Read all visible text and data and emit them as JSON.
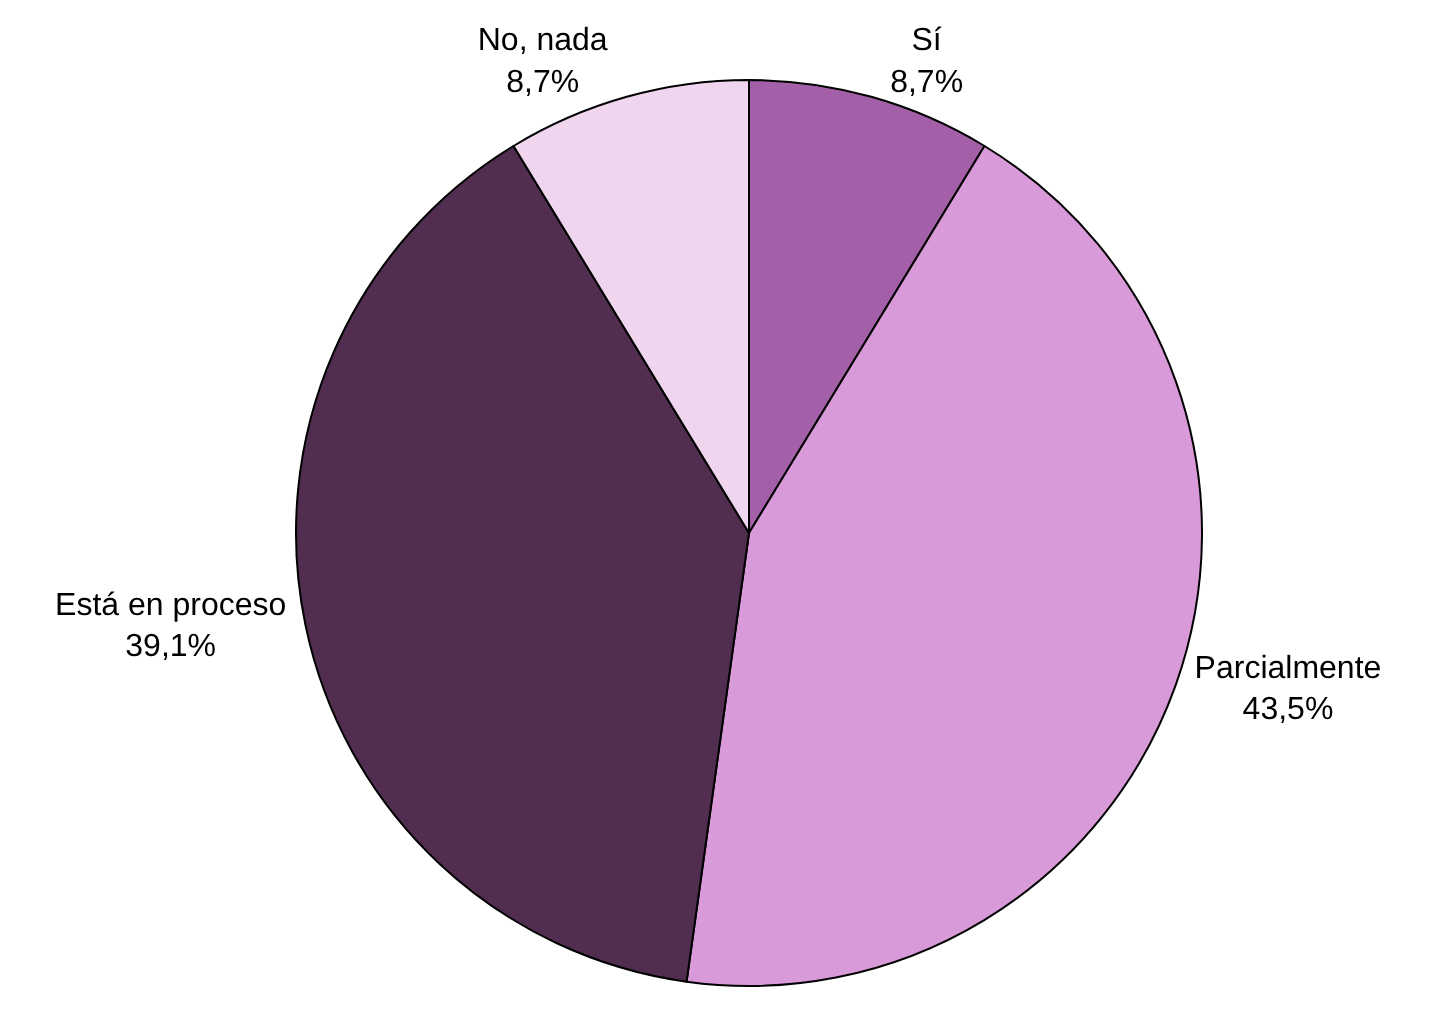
{
  "chart_data": {
    "type": "pie",
    "categories": [
      "Sí",
      "Parcialmente",
      "Está en proceso",
      "No, nada"
    ],
    "values": [
      8.7,
      43.5,
      39.1,
      8.7
    ],
    "value_labels": [
      "8,7%",
      "43,5%",
      "39,1%",
      "8,7%"
    ],
    "colors": [
      "#a35fa8",
      "#d99ad9",
      "#512e4f",
      "#f0d5ee"
    ],
    "legend": false
  }
}
